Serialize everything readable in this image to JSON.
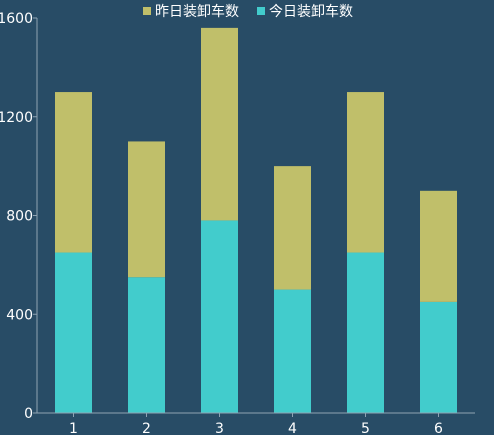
{
  "chart_data": {
    "type": "bar",
    "stacked": true,
    "categories": [
      "1",
      "2",
      "3",
      "4",
      "5",
      "6"
    ],
    "series": [
      {
        "name": "今日装卸车数",
        "color": "#42cccc",
        "values": [
          650,
          550,
          780,
          500,
          650,
          450
        ]
      },
      {
        "name": "昨日装卸车数",
        "color": "#c0bf6a",
        "values": [
          650,
          550,
          780,
          500,
          650,
          450
        ]
      }
    ],
    "ylim": [
      0,
      1600
    ],
    "yticks": [
      0,
      400,
      800,
      1200,
      1600
    ],
    "legend_position": "top-center",
    "grid": false,
    "axis_color": "#8fa3b3",
    "text_color": "#ffffff",
    "background": "#284c66"
  }
}
